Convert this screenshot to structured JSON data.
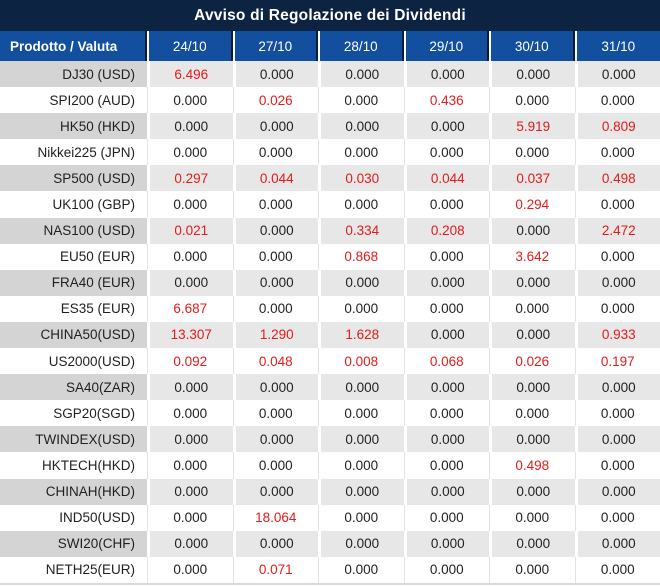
{
  "title": "Avviso di Regolazione dei Dividendi",
  "table": {
    "product_header": "Prodotto / Valuta",
    "date_columns": [
      "24/10",
      "27/10",
      "28/10",
      "29/10",
      "30/10",
      "31/10"
    ],
    "rows": [
      {
        "product": "DJ30 (USD)",
        "values": [
          "6.496",
          "0.000",
          "0.000",
          "0.000",
          "0.000",
          "0.000"
        ],
        "red": [
          true,
          false,
          false,
          false,
          false,
          false
        ]
      },
      {
        "product": "SPI200 (AUD)",
        "values": [
          "0.000",
          "0.026",
          "0.000",
          "0.436",
          "0.000",
          "0.000"
        ],
        "red": [
          false,
          true,
          false,
          true,
          false,
          false
        ]
      },
      {
        "product": "HK50 (HKD)",
        "values": [
          "0.000",
          "0.000",
          "0.000",
          "0.000",
          "5.919",
          "0.809"
        ],
        "red": [
          false,
          false,
          false,
          false,
          true,
          true
        ]
      },
      {
        "product": "Nikkei225 (JPN)",
        "values": [
          "0.000",
          "0.000",
          "0.000",
          "0.000",
          "0.000",
          "0.000"
        ],
        "red": [
          false,
          false,
          false,
          false,
          false,
          false
        ]
      },
      {
        "product": "SP500 (USD)",
        "values": [
          "0.297",
          "0.044",
          "0.030",
          "0.044",
          "0.037",
          "0.498"
        ],
        "red": [
          true,
          true,
          true,
          true,
          true,
          true
        ]
      },
      {
        "product": "UK100 (GBP)",
        "values": [
          "0.000",
          "0.000",
          "0.000",
          "0.000",
          "0.294",
          "0.000"
        ],
        "red": [
          false,
          false,
          false,
          false,
          true,
          false
        ]
      },
      {
        "product": "NAS100 (USD)",
        "values": [
          "0.021",
          "0.000",
          "0.334",
          "0.208",
          "0.000",
          "2.472"
        ],
        "red": [
          true,
          false,
          true,
          true,
          false,
          true
        ]
      },
      {
        "product": "EU50 (EUR)",
        "values": [
          "0.000",
          "0.000",
          "0.868",
          "0.000",
          "3.642",
          "0.000"
        ],
        "red": [
          false,
          false,
          true,
          false,
          true,
          false
        ]
      },
      {
        "product": "FRA40 (EUR)",
        "values": [
          "0.000",
          "0.000",
          "0.000",
          "0.000",
          "0.000",
          "0.000"
        ],
        "red": [
          false,
          false,
          false,
          false,
          false,
          false
        ]
      },
      {
        "product": "ES35 (EUR)",
        "values": [
          "6.687",
          "0.000",
          "0.000",
          "0.000",
          "0.000",
          "0.000"
        ],
        "red": [
          true,
          false,
          false,
          false,
          false,
          false
        ]
      },
      {
        "product": "CHINA50(USD)",
        "values": [
          "13.307",
          "1.290",
          "1.628",
          "0.000",
          "0.000",
          "0.933"
        ],
        "red": [
          true,
          true,
          true,
          false,
          false,
          true
        ]
      },
      {
        "product": "US2000(USD)",
        "values": [
          "0.092",
          "0.048",
          "0.008",
          "0.068",
          "0.026",
          "0.197"
        ],
        "red": [
          true,
          true,
          true,
          true,
          true,
          true
        ]
      },
      {
        "product": "SA40(ZAR)",
        "values": [
          "0.000",
          "0.000",
          "0.000",
          "0.000",
          "0.000",
          "0.000"
        ],
        "red": [
          false,
          false,
          false,
          false,
          false,
          false
        ]
      },
      {
        "product": "SGP20(SGD)",
        "values": [
          "0.000",
          "0.000",
          "0.000",
          "0.000",
          "0.000",
          "0.000"
        ],
        "red": [
          false,
          false,
          false,
          false,
          false,
          false
        ]
      },
      {
        "product": "TWINDEX(USD)",
        "values": [
          "0.000",
          "0.000",
          "0.000",
          "0.000",
          "0.000",
          "0.000"
        ],
        "red": [
          false,
          false,
          false,
          false,
          false,
          false
        ]
      },
      {
        "product": "HKTECH(HKD)",
        "values": [
          "0.000",
          "0.000",
          "0.000",
          "0.000",
          "0.498",
          "0.000"
        ],
        "red": [
          false,
          false,
          false,
          false,
          true,
          false
        ]
      },
      {
        "product": "CHINAH(HKD)",
        "values": [
          "0.000",
          "0.000",
          "0.000",
          "0.000",
          "0.000",
          "0.000"
        ],
        "red": [
          false,
          false,
          false,
          false,
          false,
          false
        ]
      },
      {
        "product": "IND50(USD)",
        "values": [
          "0.000",
          "18.064",
          "0.000",
          "0.000",
          "0.000",
          "0.000"
        ],
        "red": [
          false,
          true,
          false,
          false,
          false,
          false
        ]
      },
      {
        "product": "SWI20(CHF)",
        "values": [
          "0.000",
          "0.000",
          "0.000",
          "0.000",
          "0.000",
          "0.000"
        ],
        "red": [
          false,
          false,
          false,
          false,
          false,
          false
        ]
      },
      {
        "product": "NETH25(EUR)",
        "values": [
          "0.000",
          "0.071",
          "0.000",
          "0.000",
          "0.000",
          "0.000"
        ],
        "red": [
          false,
          true,
          false,
          false,
          false,
          false
        ]
      }
    ]
  },
  "colors": {
    "title_bg": "#0d2342",
    "header_bg": "#124f9e",
    "header_divider_dark": "#0a1c38",
    "red_value": "#e31b1b",
    "text_color": "#1f1f1f",
    "gray_product": "#d4d4d4",
    "gray_data": "#e7e7e7",
    "white_row_divider": "#e3e3e3",
    "bottom_strip": "#d9d9d9"
  }
}
